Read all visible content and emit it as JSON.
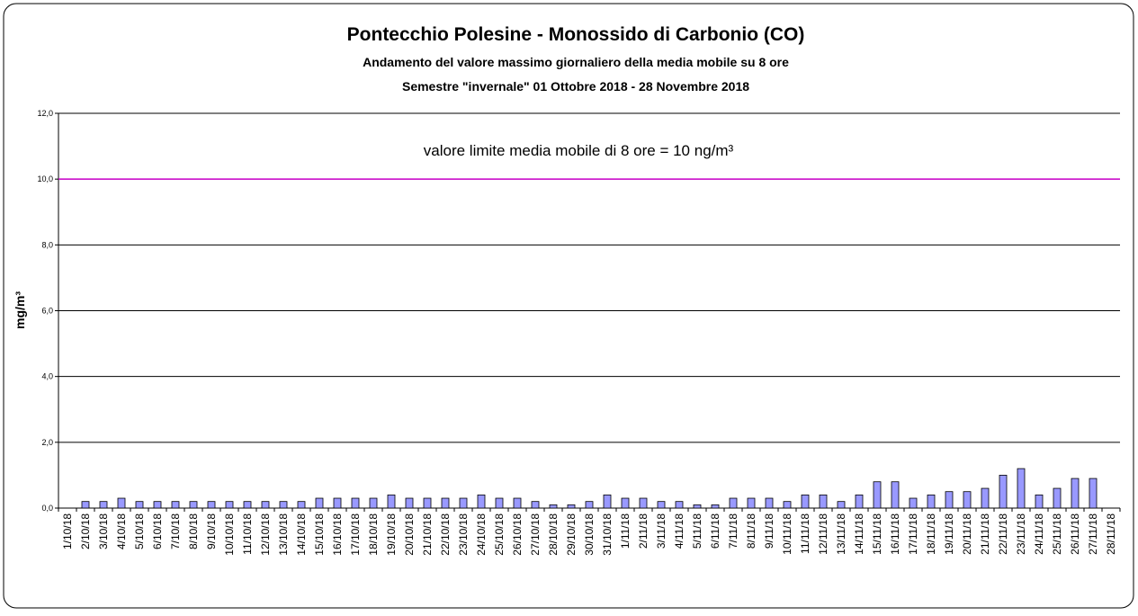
{
  "chart_data": {
    "type": "bar",
    "title": "Pontecchio Polesine - Monossido di Carbonio (CO)",
    "subtitle": "Andamento del valore massimo giornaliero della media mobile su 8 ore",
    "subtitle2": "Semestre \"invernale\" 01 Ottobre 2018 - 28 Novembre 2018",
    "annotation": "valore limite media mobile di 8 ore = 10 ng/m³",
    "y_label": "mg/m³",
    "limit": 10,
    "limit_color": "#cc00cc",
    "color": "#9999ff",
    "grid": true,
    "ylim": [
      0,
      12
    ],
    "yticks": [
      {
        "value": 0,
        "label": "0,0"
      },
      {
        "value": 2,
        "label": "2,0"
      },
      {
        "value": 4,
        "label": "4,0"
      },
      {
        "value": 6,
        "label": "6,0"
      },
      {
        "value": 8,
        "label": "8,0"
      },
      {
        "value": 10,
        "label": "10,0"
      },
      {
        "value": 12,
        "label": "12,0"
      }
    ],
    "categories": [
      "1/10/18",
      "2/10/18",
      "3/10/18",
      "4/10/18",
      "5/10/18",
      "6/10/18",
      "7/10/18",
      "8/10/18",
      "9/10/18",
      "10/10/18",
      "11/10/18",
      "12/10/18",
      "13/10/18",
      "14/10/18",
      "15/10/18",
      "16/10/18",
      "17/10/18",
      "18/10/18",
      "19/10/18",
      "20/10/18",
      "21/10/18",
      "22/10/18",
      "23/10/18",
      "24/10/18",
      "25/10/18",
      "26/10/18",
      "27/10/18",
      "28/10/18",
      "29/10/18",
      "30/10/18",
      "31/10/18",
      "1/11/18",
      "2/11/18",
      "3/11/18",
      "4/11/18",
      "5/11/18",
      "6/11/18",
      "7/11/18",
      "8/11/18",
      "9/11/18",
      "10/11/18",
      "11/11/18",
      "12/11/18",
      "13/11/18",
      "14/11/18",
      "15/11/18",
      "16/11/18",
      "17/11/18",
      "18/11/18",
      "19/11/18",
      "20/11/18",
      "21/11/18",
      "22/11/18",
      "23/11/18",
      "24/11/18",
      "25/11/18",
      "26/11/18",
      "27/11/18",
      "28/11/18"
    ],
    "values": [
      null,
      0.2,
      0.2,
      0.3,
      0.2,
      0.2,
      0.2,
      0.2,
      0.2,
      0.2,
      0.2,
      0.2,
      0.2,
      0.2,
      0.3,
      0.3,
      0.3,
      0.3,
      0.4,
      0.3,
      0.3,
      0.3,
      0.3,
      0.4,
      0.3,
      0.3,
      0.2,
      0.1,
      0.1,
      0.2,
      0.4,
      0.3,
      0.3,
      0.2,
      0.2,
      0.1,
      0.1,
      0.3,
      0.3,
      0.3,
      0.2,
      0.4,
      0.4,
      0.2,
      0.4,
      0.8,
      0.8,
      0.3,
      0.4,
      0.5,
      0.5,
      0.6,
      1.0,
      1.2,
      0.4,
      0.6,
      0.9,
      0.9,
      null
    ]
  }
}
